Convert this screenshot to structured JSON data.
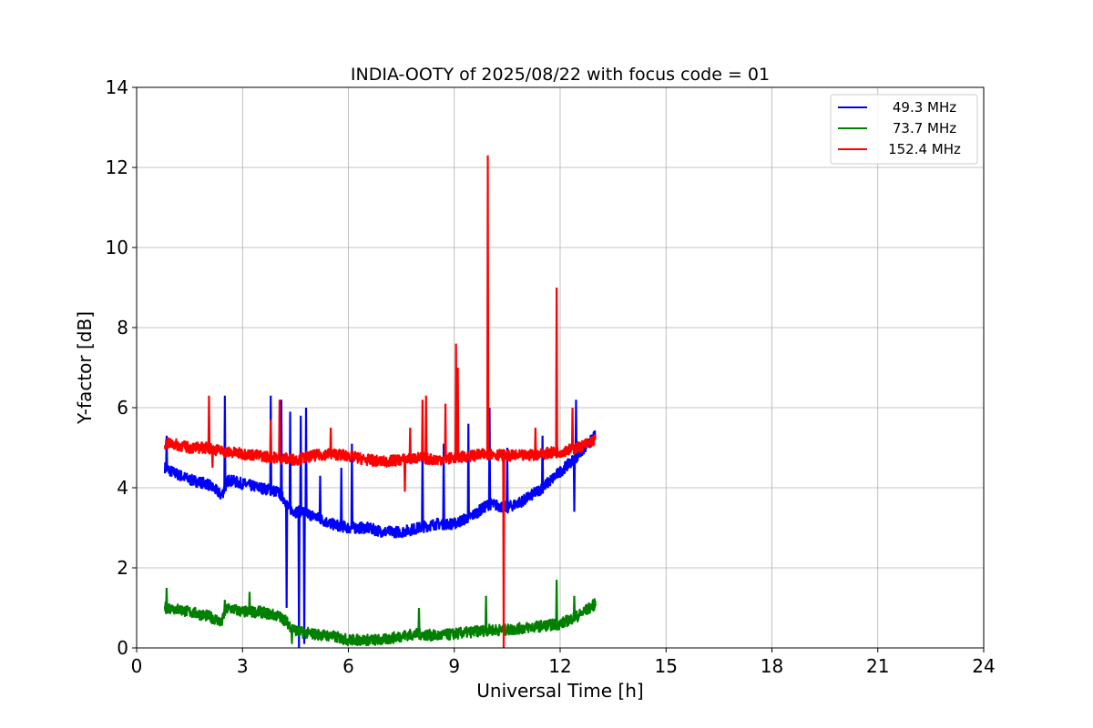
{
  "chart_data": {
    "type": "line",
    "title": "INDIA-OOTY of 2025/08/22 with focus code = 01",
    "xlabel": "Universal Time [h]",
    "ylabel": "Y-factor [dB]",
    "xlim": [
      0,
      24
    ],
    "ylim": [
      0,
      14
    ],
    "xticks": [
      "0",
      "3",
      "6",
      "9",
      "12",
      "15",
      "18",
      "21",
      "24"
    ],
    "yticks": [
      "0",
      "2",
      "4",
      "6",
      "8",
      "10",
      "12",
      "14"
    ],
    "grid": true,
    "legend_position": "upper right",
    "series": [
      {
        "name": "49.3 MHz",
        "color": "#0000ff",
        "x": [
          0.8,
          1.0,
          1.5,
          2.0,
          2.3,
          2.4,
          2.5,
          2.6,
          3.0,
          3.5,
          4.0,
          4.2,
          4.3,
          4.5,
          4.7,
          5.0,
          5.5,
          6.0,
          6.5,
          7.0,
          7.5,
          8.0,
          8.5,
          9.0,
          9.5,
          10.0,
          10.5,
          11.0,
          11.5,
          12.0,
          12.5,
          13.0
        ],
        "y": [
          4.5,
          4.4,
          4.2,
          4.1,
          3.9,
          3.8,
          4.0,
          4.2,
          4.1,
          4.0,
          3.9,
          3.7,
          3.5,
          3.4,
          3.4,
          3.3,
          3.1,
          3.0,
          3.0,
          2.9,
          2.9,
          3.0,
          3.1,
          3.1,
          3.3,
          3.6,
          3.5,
          3.7,
          4.0,
          4.4,
          4.8,
          5.3
        ],
        "spikes": [
          [
            0.85,
            5.3
          ],
          [
            2.5,
            6.3
          ],
          [
            3.8,
            6.3
          ],
          [
            4.1,
            6.2
          ],
          [
            4.25,
            1.0
          ],
          [
            4.35,
            5.9
          ],
          [
            4.6,
            0.0
          ],
          [
            4.65,
            5.8
          ],
          [
            4.75,
            0.1
          ],
          [
            4.8,
            6.0
          ],
          [
            5.2,
            4.3
          ],
          [
            5.8,
            4.5
          ],
          [
            6.1,
            5.1
          ],
          [
            8.1,
            5.1
          ],
          [
            8.7,
            5.1
          ],
          [
            9.4,
            5.6
          ],
          [
            10.0,
            6.0
          ],
          [
            10.5,
            5.0
          ],
          [
            11.5,
            5.3
          ],
          [
            12.4,
            3.4
          ],
          [
            12.45,
            6.2
          ]
        ]
      },
      {
        "name": "73.7 MHz",
        "color": "#008000",
        "x": [
          0.8,
          1.0,
          1.5,
          2.0,
          2.3,
          2.4,
          2.5,
          2.6,
          3.0,
          3.5,
          4.0,
          4.2,
          4.4,
          4.6,
          5.0,
          5.5,
          6.0,
          6.5,
          7.0,
          7.5,
          8.0,
          8.5,
          9.0,
          9.5,
          10.0,
          10.5,
          11.0,
          11.5,
          12.0,
          12.5,
          13.0
        ],
        "y": [
          1.0,
          1.0,
          0.9,
          0.8,
          0.7,
          0.6,
          0.9,
          1.0,
          0.9,
          0.9,
          0.8,
          0.7,
          0.5,
          0.4,
          0.35,
          0.3,
          0.2,
          0.2,
          0.2,
          0.3,
          0.35,
          0.3,
          0.35,
          0.4,
          0.45,
          0.45,
          0.5,
          0.55,
          0.6,
          0.8,
          1.1
        ],
        "spikes": [
          [
            0.85,
            1.5
          ],
          [
            2.5,
            1.2
          ],
          [
            3.2,
            1.4
          ],
          [
            4.4,
            0.1
          ],
          [
            8.0,
            1.0
          ],
          [
            9.9,
            1.3
          ],
          [
            11.9,
            1.7
          ],
          [
            12.4,
            1.3
          ]
        ]
      },
      {
        "name": "152.4 MHz",
        "color": "#ff0000",
        "x": [
          0.8,
          1.0,
          1.5,
          2.0,
          2.5,
          3.0,
          3.5,
          4.0,
          4.5,
          5.0,
          5.5,
          6.0,
          6.5,
          7.0,
          7.5,
          8.0,
          8.5,
          9.0,
          9.5,
          10.0,
          10.5,
          11.0,
          11.5,
          12.0,
          12.5,
          13.0
        ],
        "y": [
          5.1,
          5.1,
          5.0,
          5.0,
          4.9,
          4.85,
          4.8,
          4.75,
          4.7,
          4.8,
          4.85,
          4.8,
          4.7,
          4.65,
          4.7,
          4.75,
          4.7,
          4.75,
          4.8,
          4.85,
          4.8,
          4.8,
          4.85,
          4.9,
          5.0,
          5.2
        ],
        "spikes": [
          [
            2.05,
            6.3
          ],
          [
            2.15,
            4.5
          ],
          [
            3.8,
            5.7
          ],
          [
            4.05,
            6.2
          ],
          [
            5.5,
            5.5
          ],
          [
            7.6,
            3.9
          ],
          [
            7.75,
            5.5
          ],
          [
            8.1,
            6.2
          ],
          [
            8.2,
            6.3
          ],
          [
            8.75,
            6.1
          ],
          [
            9.05,
            7.6
          ],
          [
            9.1,
            7.0
          ],
          [
            9.95,
            12.3
          ],
          [
            10.4,
            0.0
          ],
          [
            11.3,
            5.5
          ],
          [
            11.9,
            9.0
          ],
          [
            12.35,
            6.0
          ]
        ]
      }
    ]
  }
}
